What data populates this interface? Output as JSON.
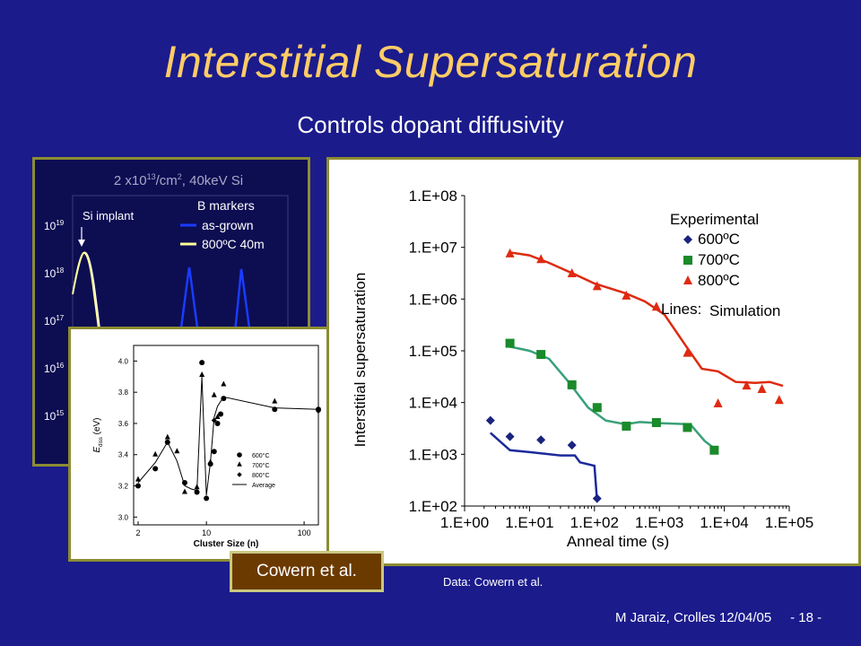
{
  "slide": {
    "title": "Interstitial Supersaturation",
    "subtitle": "Controls dopant diffusivity",
    "credit_box": "Cowern et al.",
    "data_credit": "Data: Cowern et al.",
    "footer": "M Jaraiz, Crolles 12/04/05     - 18 -"
  },
  "colors": {
    "background": "#1b1b8c",
    "title": "#ffcc66",
    "series_600": "#1a237e",
    "series_700": "#1a8a2a",
    "series_800": "#e02a12",
    "line_800": "#dd2a10",
    "line_700": "#3aa07a",
    "line_600": "#1b2a9a"
  },
  "chart_data": [
    {
      "id": "profile",
      "type": "line",
      "title": "2 x10",
      "title_sup": "13",
      "title_rest": "/cm",
      "title_sup2": "2",
      "title_end": ", 40keV Si",
      "annotation": "Si implant",
      "legend_title": "B markers",
      "legend": [
        "as-grown",
        "800ºC 40m"
      ],
      "y_tick_base": "10",
      "y_tick_exps": [
        "19",
        "18",
        "17",
        "16",
        "15"
      ],
      "colors": {
        "as_grown": "#1a3cff",
        "annealed": "#ffff99"
      }
    },
    {
      "id": "inset",
      "type": "scatter",
      "xlabel": "Cluster Size (n)",
      "ylabel": "E",
      "ylabel_sub": "diss",
      "ylabel_unit": " (eV)",
      "x_ticks": [
        "2",
        "10",
        "100"
      ],
      "y_ticks": [
        "3.0",
        "3.2",
        "3.4",
        "3.6",
        "3.8",
        "4.0"
      ],
      "xlim": [
        1.8,
        140
      ],
      "ylim": [
        2.95,
        4.1
      ],
      "legend": [
        "600°C",
        "700°C",
        "800°C",
        "Average"
      ],
      "series": [
        {
          "name": "600°C",
          "marker": "circle",
          "points": [
            [
              2,
              3.2
            ],
            [
              3,
              3.31
            ],
            [
              4,
              3.48
            ],
            [
              6,
              3.22
            ],
            [
              8,
              3.16
            ],
            [
              9,
              3.99
            ],
            [
              10,
              3.12
            ],
            [
              11,
              3.34
            ],
            [
              12,
              3.42
            ],
            [
              13,
              3.6
            ],
            [
              14,
              3.66
            ],
            [
              15,
              3.76
            ],
            [
              50,
              3.69
            ],
            [
              140,
              3.69
            ]
          ]
        },
        {
          "name": "700°C",
          "marker": "triangle",
          "points": [
            [
              2,
              3.24
            ],
            [
              3,
              3.4
            ],
            [
              4,
              3.51
            ],
            [
              5,
              3.42
            ],
            [
              6,
              3.16
            ],
            [
              8,
              3.19
            ],
            [
              9,
              3.91
            ],
            [
              11,
              3.35
            ],
            [
              12,
              3.78
            ],
            [
              13,
              3.64
            ],
            [
              15,
              3.85
            ],
            [
              50,
              3.74
            ]
          ]
        },
        {
          "name": "800°C",
          "marker": "diamond",
          "points": [
            [
              12,
              3.62
            ],
            [
              140,
              3.68
            ]
          ]
        }
      ],
      "average": [
        [
          2,
          3.22
        ],
        [
          3,
          3.35
        ],
        [
          4,
          3.48
        ],
        [
          5,
          3.36
        ],
        [
          6,
          3.2
        ],
        [
          7,
          3.18
        ],
        [
          8,
          3.17
        ],
        [
          9,
          3.9
        ],
        [
          10,
          3.14
        ],
        [
          11,
          3.35
        ],
        [
          12,
          3.64
        ],
        [
          13,
          3.71
        ],
        [
          15,
          3.77
        ],
        [
          50,
          3.7
        ],
        [
          140,
          3.69
        ]
      ]
    },
    {
      "id": "main",
      "type": "scatter",
      "xlabel": "Anneal time (s)",
      "ylabel": "Interstitial supersaturation",
      "x_ticks": [
        "1.E+00",
        "1.E+01",
        "1.E+02",
        "1.E+03",
        "1.E+04",
        "1.E+05"
      ],
      "y_ticks": [
        "1.E+08",
        "1.E+07",
        "1.E+06",
        "1.E+05",
        "1.E+04",
        "1.E+03",
        "1.E+02"
      ],
      "xlim": [
        1,
        100000
      ],
      "ylim": [
        100,
        100000000
      ],
      "log_x": true,
      "log_y": true,
      "legend_title": "Experimental",
      "legend_lines_label": "Lines:",
      "legend_lines_value": "Simulation",
      "series": [
        {
          "name": "600ºC",
          "marker": "diamond",
          "color_key": "series_600",
          "points": [
            [
              2.5,
              4500
            ],
            [
              5,
              2200
            ],
            [
              15,
              1900
            ],
            [
              45,
              1500
            ],
            [
              110,
              140
            ]
          ]
        },
        {
          "name": "700ºC",
          "marker": "square",
          "color_key": "series_700",
          "points": [
            [
              5,
              140000
            ],
            [
              15,
              85000
            ],
            [
              45,
              22000
            ],
            [
              110,
              8000
            ],
            [
              310,
              3500
            ],
            [
              900,
              4100
            ],
            [
              2700,
              3300
            ],
            [
              7000,
              1200
            ]
          ]
        },
        {
          "name": "800ºC",
          "marker": "triangle",
          "color_key": "series_800",
          "points": [
            [
              5,
              7500000
            ],
            [
              15,
              5800000
            ],
            [
              45,
              3100000
            ],
            [
              110,
              1750000
            ],
            [
              310,
              1150000
            ],
            [
              900,
              700000
            ],
            [
              2700,
              90000
            ],
            [
              8000,
              9500
            ],
            [
              22000,
              21000
            ],
            [
              38000,
              18000
            ],
            [
              70000,
              11000
            ]
          ]
        }
      ],
      "simulation_lines": [
        {
          "color_key": "line_800",
          "points": [
            [
              5,
              8000000
            ],
            [
              10,
              7000000
            ],
            [
              20,
              5000000
            ],
            [
              50,
              3000000
            ],
            [
              100,
              2000000
            ],
            [
              300,
              1300000
            ],
            [
              600,
              900000
            ],
            [
              1200,
              500000
            ],
            [
              2500,
              130000
            ],
            [
              4500,
              45000
            ],
            [
              8000,
              40000
            ],
            [
              15000,
              25000
            ],
            [
              30000,
              24000
            ],
            [
              50000,
              25000
            ],
            [
              80000,
              21000
            ]
          ]
        },
        {
          "color_key": "line_700",
          "points": [
            [
              5,
              120000
            ],
            [
              10,
              100000
            ],
            [
              20,
              70000
            ],
            [
              40,
              25000
            ],
            [
              80,
              8000
            ],
            [
              150,
              4500
            ],
            [
              300,
              3800
            ],
            [
              500,
              4200
            ],
            [
              1000,
              4000
            ],
            [
              3000,
              3800
            ],
            [
              5000,
              1800
            ],
            [
              7000,
              1300
            ]
          ]
        },
        {
          "color_key": "line_600",
          "points": [
            [
              2.5,
              2600
            ],
            [
              5,
              1200
            ],
            [
              10,
              1100
            ],
            [
              30,
              950
            ],
            [
              50,
              950
            ],
            [
              60,
              700
            ],
            [
              100,
              600
            ],
            [
              110,
              120
            ]
          ]
        }
      ]
    }
  ]
}
